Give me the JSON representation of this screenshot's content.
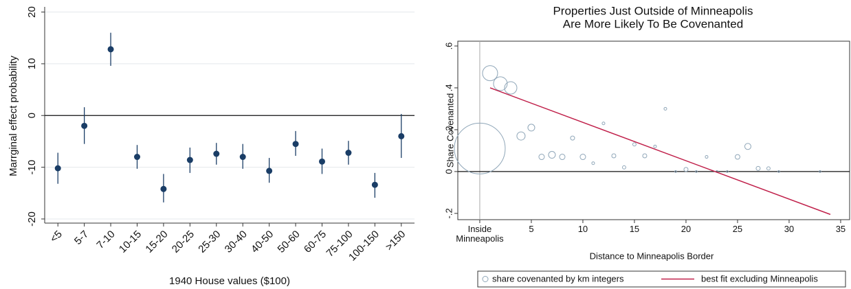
{
  "chart_data": [
    {
      "type": "errorbar",
      "xlabel": "1940 House values ($100)",
      "ylabel": "Marrginal effect probability",
      "categories": [
        "<5",
        "5-7",
        "7-10",
        "10-15",
        "15-20",
        "20-25",
        "25-30",
        "30-40",
        "40-50",
        "50-60",
        "60-75",
        "75-100",
        "100-150",
        ">150"
      ],
      "values": [
        -10.2,
        -2,
        12.8,
        -8,
        -14.2,
        -8.6,
        -7.4,
        -8,
        -10.7,
        -5.5,
        -8.9,
        -7.2,
        -13.4,
        -4
      ],
      "ci_low": [
        -13.2,
        -5.5,
        9.6,
        -10.3,
        -16.8,
        -11.1,
        -9.5,
        -10.3,
        -13,
        -7.8,
        -11.3,
        -9.5,
        -15.9,
        -8.2
      ],
      "ci_high": [
        -7.2,
        1.6,
        16,
        -5.7,
        -11.3,
        -6.2,
        -5.3,
        -5.5,
        -8.2,
        -3,
        -6.4,
        -4.9,
        -11.1,
        0.3
      ],
      "color": "#1a3d66",
      "ylim": [
        -20.8,
        21
      ],
      "yticks": [
        -20,
        -10,
        0,
        10,
        20
      ],
      "grid": true,
      "reference_line": 0
    },
    {
      "type": "scatter",
      "title": [
        "Properties Just Outside of Minneapolis",
        "Are More Likely To Be Covenanted"
      ],
      "xlabel": "Distance to Minneapolis Border",
      "ylabel": "Share Covenanted",
      "series": [
        {
          "name": "share covenanted by km integers",
          "color": "#8fa6b8",
          "x": [
            0,
            1,
            2,
            3,
            4,
            5,
            6,
            7,
            8,
            9,
            10,
            11,
            12,
            13,
            14,
            15,
            16,
            17,
            18,
            19,
            20,
            21,
            22,
            23,
            24,
            25,
            26,
            27,
            28,
            29,
            33
          ],
          "y": [
            0.11,
            0.47,
            0.42,
            0.4,
            0.17,
            0.21,
            0.07,
            0.08,
            0.07,
            0.16,
            0.07,
            0.04,
            0.23,
            0.075,
            0.02,
            0.13,
            0.075,
            0.12,
            0.3,
            0,
            0.01,
            0,
            0.07,
            0,
            0,
            0.07,
            0.12,
            0.015,
            0.015,
            0,
            0
          ],
          "sizes": [
            1369,
            121,
            100,
            81,
            36,
            25,
            16,
            25,
            16,
            9,
            16,
            4,
            4,
            9,
            6,
            6,
            9,
            4,
            4,
            2,
            9,
            2,
            4,
            2,
            2,
            12,
            20,
            9,
            6,
            2,
            2
          ]
        }
      ],
      "fit": {
        "name": "best fit excluding Minneapolis",
        "color": "#c0204a",
        "x": [
          1,
          34
        ],
        "y": [
          0.4,
          -0.205
        ]
      },
      "xlim": [
        -2.13,
        35.87
      ],
      "ylim": [
        -0.23,
        0.623
      ],
      "xticks": [
        {
          "value": 0,
          "label": "Inside Minneapolis"
        },
        5,
        10,
        15,
        20,
        25,
        30,
        35
      ],
      "yticks": [
        {
          "value": -0.2,
          "label": "-.2"
        },
        0,
        {
          "value": 0.2,
          "label": ".2"
        },
        {
          "value": 0.4,
          "label": ".4"
        },
        {
          "value": 0.6,
          "label": ".6"
        }
      ],
      "reference_line": 0
    }
  ]
}
